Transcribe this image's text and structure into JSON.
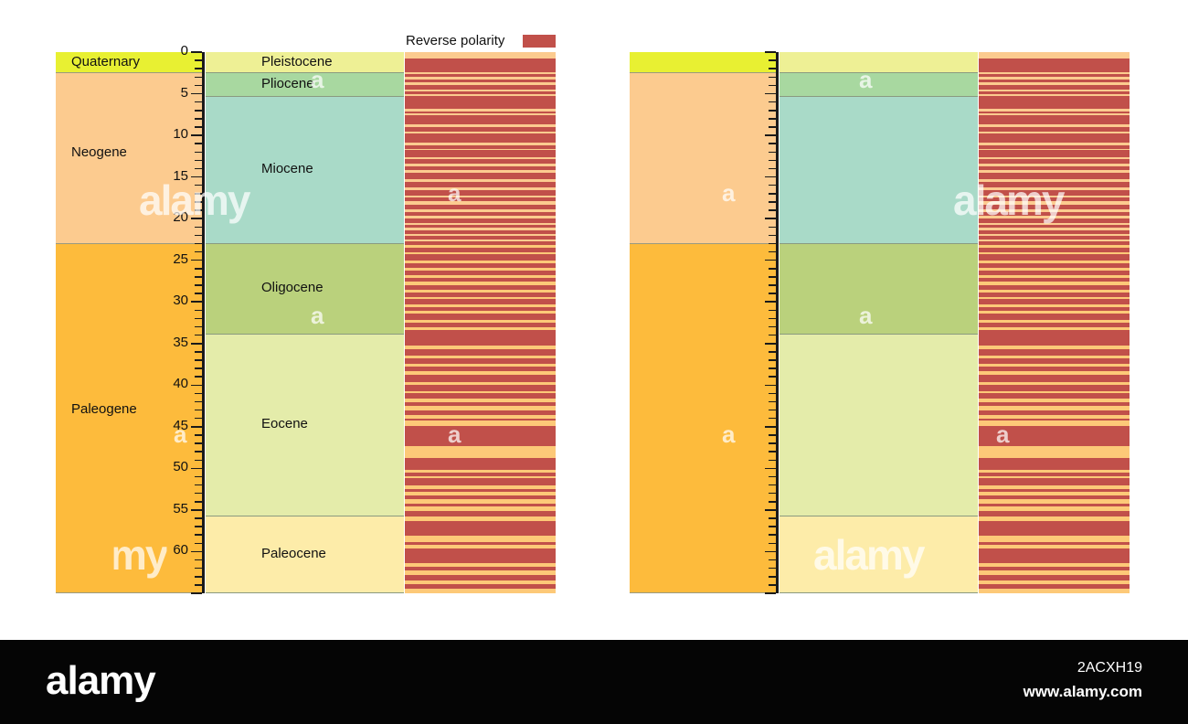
{
  "legend": {
    "label": "Reverse polarity",
    "color": "#c1504a"
  },
  "axis": {
    "max": 65,
    "ticks": [
      "0",
      "5",
      "10",
      "15",
      "20",
      "25",
      "30",
      "35",
      "40",
      "45",
      "50",
      "55",
      "60"
    ]
  },
  "periods": [
    {
      "name": "Quaternary",
      "start": 0,
      "end": 2.58,
      "color": "#e8f032"
    },
    {
      "name": "Neogene",
      "start": 2.58,
      "end": 23.03,
      "color": "#fccb8f"
    },
    {
      "name": "Paleogene",
      "start": 23.03,
      "end": 65,
      "color": "#fdbb3c"
    }
  ],
  "epochs": [
    {
      "name": "Pleistocene",
      "start": 0,
      "end": 2.58,
      "color": "#eef095"
    },
    {
      "name": "Pliocene",
      "start": 2.58,
      "end": 5.33,
      "color": "#a8d8a0"
    },
    {
      "name": "Miocene",
      "start": 5.33,
      "end": 23.03,
      "color": "#a9dac8"
    },
    {
      "name": "Oligocene",
      "start": 23.03,
      "end": 33.9,
      "color": "#bad17c"
    },
    {
      "name": "Eocene",
      "start": 33.9,
      "end": 55.8,
      "color": "#e4ecaa"
    },
    {
      "name": "Paleocene",
      "start": 55.8,
      "end": 65,
      "color": "#fdeca9"
    }
  ],
  "polarity_colors": {
    "normal_neogene": "#fccb8f",
    "normal_paleogene": "#fdbb3c",
    "reverse": "#c1504a"
  },
  "reverse_intervals": [
    [
      0.78,
      2.4
    ],
    [
      2.6,
      3.0
    ],
    [
      3.3,
      3.6
    ],
    [
      4.0,
      4.5
    ],
    [
      4.7,
      5.1
    ],
    [
      5.3,
      6.8
    ],
    [
      7.1,
      7.4
    ],
    [
      7.6,
      8.7
    ],
    [
      9.0,
      9.5
    ],
    [
      9.8,
      10.9
    ],
    [
      11.2,
      11.6
    ],
    [
      11.8,
      12.6
    ],
    [
      12.9,
      13.4
    ],
    [
      13.7,
      14.2
    ],
    [
      14.5,
      15.3
    ],
    [
      15.6,
      16.2
    ],
    [
      16.6,
      17.2
    ],
    [
      17.5,
      17.9
    ],
    [
      18.3,
      18.9
    ],
    [
      19.2,
      19.7
    ],
    [
      20.0,
      20.5
    ],
    [
      20.8,
      21.1
    ],
    [
      21.4,
      21.8
    ],
    [
      22.1,
      22.5
    ],
    [
      22.7,
      23.2
    ],
    [
      23.5,
      24.0
    ],
    [
      24.3,
      25.0
    ],
    [
      25.4,
      25.9
    ],
    [
      26.2,
      26.8
    ],
    [
      27.1,
      27.6
    ],
    [
      28.0,
      28.6
    ],
    [
      28.9,
      29.4
    ],
    [
      29.7,
      30.3
    ],
    [
      30.6,
      31.1
    ],
    [
      31.4,
      32.2
    ],
    [
      32.5,
      33.1
    ],
    [
      33.4,
      35.3
    ],
    [
      35.7,
      36.5
    ],
    [
      36.8,
      37.4
    ],
    [
      37.8,
      38.3
    ],
    [
      38.8,
      39.6
    ],
    [
      40.0,
      40.7
    ],
    [
      41.0,
      41.6
    ],
    [
      42.0,
      42.5
    ],
    [
      43.0,
      43.6
    ],
    [
      44.0,
      44.3
    ],
    [
      44.9,
      47.3
    ],
    [
      48.8,
      50.2
    ],
    [
      50.5,
      50.9
    ],
    [
      51.2,
      52.0
    ],
    [
      52.5,
      52.8
    ],
    [
      53.3,
      53.7
    ],
    [
      54.2,
      54.6
    ],
    [
      55.1,
      55.8
    ],
    [
      56.3,
      58.1
    ],
    [
      58.8,
      59.2
    ],
    [
      59.6,
      61.4
    ],
    [
      61.8,
      62.3
    ],
    [
      62.8,
      63.5
    ],
    [
      63.9,
      64.4
    ]
  ],
  "watermark": {
    "main": "alamy",
    "letter": "a"
  },
  "footer": {
    "logo": "alamy",
    "image_id": "2ACXH19",
    "url": "www.alamy.com"
  }
}
